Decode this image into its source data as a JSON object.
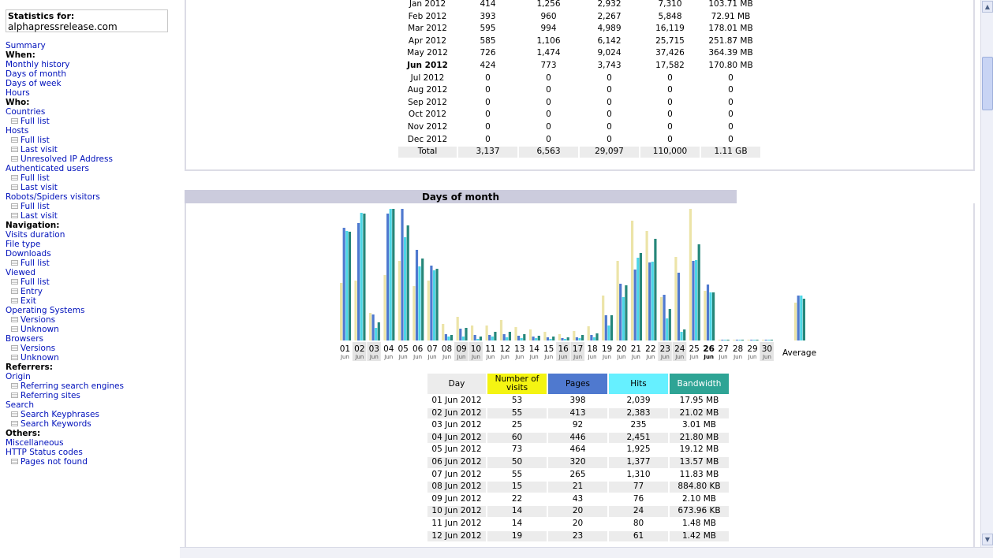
{
  "nav": {
    "stats_label": "Statistics for:",
    "site": "alphapressrelease.com",
    "items": [
      {
        "t": "link",
        "label": "Summary"
      },
      {
        "t": "hdr",
        "label": "When:"
      },
      {
        "t": "link",
        "label": "Monthly history"
      },
      {
        "t": "link",
        "label": "Days of month"
      },
      {
        "t": "link",
        "label": "Days of week"
      },
      {
        "t": "link",
        "label": "Hours"
      },
      {
        "t": "hdr",
        "label": "Who:"
      },
      {
        "t": "link",
        "label": "Countries"
      },
      {
        "t": "sub",
        "label": "Full list"
      },
      {
        "t": "link",
        "label": "Hosts"
      },
      {
        "t": "sub",
        "label": "Full list"
      },
      {
        "t": "sub",
        "label": "Last visit"
      },
      {
        "t": "sub",
        "label": "Unresolved IP Address"
      },
      {
        "t": "link",
        "label": "Authenticated users"
      },
      {
        "t": "sub",
        "label": "Full list"
      },
      {
        "t": "sub",
        "label": "Last visit"
      },
      {
        "t": "link",
        "label": "Robots/Spiders visitors"
      },
      {
        "t": "sub",
        "label": "Full list"
      },
      {
        "t": "sub",
        "label": "Last visit"
      },
      {
        "t": "hdr",
        "label": "Navigation:"
      },
      {
        "t": "link",
        "label": "Visits duration"
      },
      {
        "t": "link",
        "label": "File type"
      },
      {
        "t": "link",
        "label": "Downloads"
      },
      {
        "t": "sub",
        "label": "Full list"
      },
      {
        "t": "link",
        "label": "Viewed"
      },
      {
        "t": "sub",
        "label": "Full list"
      },
      {
        "t": "sub",
        "label": "Entry"
      },
      {
        "t": "sub",
        "label": "Exit"
      },
      {
        "t": "link",
        "label": "Operating Systems"
      },
      {
        "t": "sub",
        "label": "Versions"
      },
      {
        "t": "sub",
        "label": "Unknown"
      },
      {
        "t": "link",
        "label": "Browsers"
      },
      {
        "t": "sub",
        "label": "Versions"
      },
      {
        "t": "sub",
        "label": "Unknown"
      },
      {
        "t": "hdr",
        "label": "Referrers:"
      },
      {
        "t": "link",
        "label": "Origin"
      },
      {
        "t": "sub",
        "label": "Referring search engines"
      },
      {
        "t": "sub",
        "label": "Referring sites"
      },
      {
        "t": "link",
        "label": "Search"
      },
      {
        "t": "sub",
        "label": "Search Keyphrases"
      },
      {
        "t": "sub",
        "label": "Search Keywords"
      },
      {
        "t": "hdr",
        "label": "Others:"
      },
      {
        "t": "link",
        "label": "Miscellaneous"
      },
      {
        "t": "link",
        "label": "HTTP Status codes"
      },
      {
        "t": "sub",
        "label": "Pages not found"
      }
    ]
  },
  "monthly": {
    "rows": [
      {
        "month": "Jan 2012",
        "visits": "414",
        "pages": "1,256",
        "hits": "2,932",
        "col4": "7,310",
        "bw": "103.71 MB"
      },
      {
        "month": "Feb 2012",
        "visits": "393",
        "pages": "960",
        "hits": "2,267",
        "col4": "5,848",
        "bw": "72.91 MB"
      },
      {
        "month": "Mar 2012",
        "visits": "595",
        "pages": "994",
        "hits": "4,989",
        "col4": "16,119",
        "bw": "178.01 MB"
      },
      {
        "month": "Apr 2012",
        "visits": "585",
        "pages": "1,106",
        "hits": "6,142",
        "col4": "25,715",
        "bw": "251.87 MB"
      },
      {
        "month": "May 2012",
        "visits": "726",
        "pages": "1,474",
        "hits": "9,024",
        "col4": "37,426",
        "bw": "364.39 MB"
      },
      {
        "month": "Jun 2012",
        "visits": "424",
        "pages": "773",
        "hits": "3,743",
        "col4": "17,582",
        "bw": "170.80 MB",
        "current": true
      },
      {
        "month": "Jul 2012",
        "visits": "0",
        "pages": "0",
        "hits": "0",
        "col4": "0",
        "bw": "0"
      },
      {
        "month": "Aug 2012",
        "visits": "0",
        "pages": "0",
        "hits": "0",
        "col4": "0",
        "bw": "0"
      },
      {
        "month": "Sep 2012",
        "visits": "0",
        "pages": "0",
        "hits": "0",
        "col4": "0",
        "bw": "0"
      },
      {
        "month": "Oct 2012",
        "visits": "0",
        "pages": "0",
        "hits": "0",
        "col4": "0",
        "bw": "0"
      },
      {
        "month": "Nov 2012",
        "visits": "0",
        "pages": "0",
        "hits": "0",
        "col4": "0",
        "bw": "0"
      },
      {
        "month": "Dec 2012",
        "visits": "0",
        "pages": "0",
        "hits": "0",
        "col4": "0",
        "bw": "0"
      }
    ],
    "total": {
      "label": "Total",
      "visits": "3,137",
      "pages": "6,563",
      "hits": "29,097",
      "col4": "110,000",
      "bw": "1.11 GB"
    }
  },
  "days_section": {
    "title": "Days of month",
    "average_label": "Average",
    "month_label": "Jun",
    "current_day": "26",
    "weekend_days": [
      "02",
      "03",
      "09",
      "10",
      "16",
      "17",
      "23",
      "24",
      "30"
    ]
  },
  "chart_data": {
    "type": "bar",
    "categories": [
      "01",
      "02",
      "03",
      "04",
      "05",
      "06",
      "07",
      "08",
      "09",
      "10",
      "11",
      "12",
      "13",
      "14",
      "15",
      "16",
      "17",
      "18",
      "19",
      "20",
      "21",
      "22",
      "23",
      "24",
      "25",
      "26",
      "27",
      "28",
      "29",
      "30",
      "Average"
    ],
    "series": [
      {
        "name": "Number of visits",
        "color": "#ece4a8",
        "values": [
          53,
          55,
          25,
          60,
          73,
          50,
          55,
          15,
          22,
          14,
          14,
          19,
          12,
          10,
          8,
          6,
          9,
          13,
          41,
          73,
          110,
          101,
          40,
          77,
          121,
          46,
          0,
          0,
          0,
          0,
          35
        ]
      },
      {
        "name": "Pages",
        "color": "#4f79cf",
        "values": [
          398,
          413,
          92,
          446,
          464,
          320,
          265,
          21,
          43,
          20,
          20,
          23,
          18,
          15,
          10,
          8,
          12,
          20,
          90,
          200,
          251,
          276,
          160,
          240,
          282,
          196,
          0,
          0,
          0,
          0,
          159
        ]
      },
      {
        "name": "Hits",
        "color": "#4cd6e6",
        "values": [
          2039,
          2383,
          235,
          2451,
          1925,
          1377,
          1310,
          77,
          76,
          24,
          80,
          61,
          50,
          40,
          30,
          25,
          45,
          60,
          280,
          800,
          1540,
          1470,
          410,
          160,
          1500,
          900,
          10,
          10,
          10,
          10,
          830
        ]
      },
      {
        "name": "Bandwidth (MB)",
        "color": "#26877a",
        "values": [
          17.95,
          21.02,
          3.01,
          21.8,
          19.12,
          13.57,
          11.83,
          0.86,
          2.1,
          0.66,
          1.48,
          1.42,
          1.0,
          0.8,
          0.6,
          0.5,
          0.9,
          1.2,
          4.2,
          9.1,
          14.5,
          16.8,
          5.2,
          1.8,
          15.9,
          8.0,
          0.1,
          0.1,
          0.1,
          0.1,
          6.9
        ]
      }
    ],
    "ylim_visits": [
      0,
      121
    ],
    "ylim_pages": [
      0,
      464
    ],
    "ylim_hits": [
      0,
      2451
    ],
    "ylim_bandwidth": [
      0,
      21.8
    ]
  },
  "daily": {
    "headers": {
      "day": "Day",
      "visits": "Number of visits",
      "pages": "Pages",
      "hits": "Hits",
      "bw": "Bandwidth"
    },
    "header_colors": {
      "visits": "#f4f412",
      "pages": "#4f79cf",
      "hits": "#66f0ff",
      "bw": "#2ea495"
    },
    "rows": [
      {
        "day": "01 Jun 2012",
        "visits": "53",
        "pages": "398",
        "hits": "2,039",
        "bw": "17.95 MB"
      },
      {
        "day": "02 Jun 2012",
        "visits": "55",
        "pages": "413",
        "hits": "2,383",
        "bw": "21.02 MB"
      },
      {
        "day": "03 Jun 2012",
        "visits": "25",
        "pages": "92",
        "hits": "235",
        "bw": "3.01 MB"
      },
      {
        "day": "04 Jun 2012",
        "visits": "60",
        "pages": "446",
        "hits": "2,451",
        "bw": "21.80 MB"
      },
      {
        "day": "05 Jun 2012",
        "visits": "73",
        "pages": "464",
        "hits": "1,925",
        "bw": "19.12 MB"
      },
      {
        "day": "06 Jun 2012",
        "visits": "50",
        "pages": "320",
        "hits": "1,377",
        "bw": "13.57 MB"
      },
      {
        "day": "07 Jun 2012",
        "visits": "55",
        "pages": "265",
        "hits": "1,310",
        "bw": "11.83 MB"
      },
      {
        "day": "08 Jun 2012",
        "visits": "15",
        "pages": "21",
        "hits": "77",
        "bw": "884.80 KB"
      },
      {
        "day": "09 Jun 2012",
        "visits": "22",
        "pages": "43",
        "hits": "76",
        "bw": "2.10 MB"
      },
      {
        "day": "10 Jun 2012",
        "visits": "14",
        "pages": "20",
        "hits": "24",
        "bw": "673.96 KB"
      },
      {
        "day": "11 Jun 2012",
        "visits": "14",
        "pages": "20",
        "hits": "80",
        "bw": "1.48 MB"
      },
      {
        "day": "12 Jun 2012",
        "visits": "19",
        "pages": "23",
        "hits": "61",
        "bw": "1.42 MB"
      }
    ]
  }
}
